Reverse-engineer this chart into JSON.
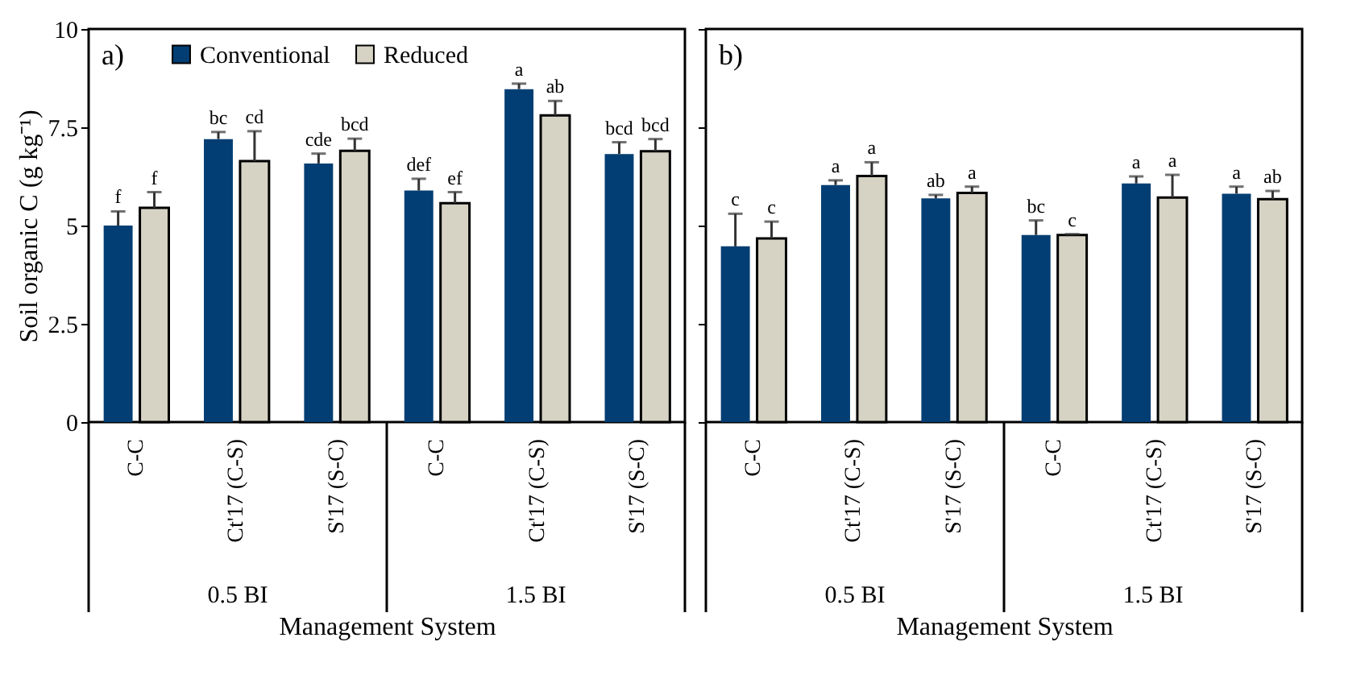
{
  "chart_data": [
    {
      "type": "bar",
      "title": "a)",
      "xlabel": "Management System",
      "ylabel": "Soil organic C (g kg⁻¹)",
      "categories": [
        "C-C",
        "Ct'17 (C-S)",
        "S'17 (S-C)",
        "C-C",
        "Ct'17 (C-S)",
        "S'17 (S-C)"
      ],
      "ylim": [
        0,
        10
      ],
      "yticks": [
        0,
        2.5,
        5,
        7.5,
        10
      ],
      "legend": "top left",
      "annotations": [
        "0.5 BI",
        "1.5 BI"
      ],
      "series": [
        {
          "name": "Conventional",
          "color": "#023e73",
          "values": [
            5.0,
            7.2,
            6.58,
            5.89,
            8.47,
            6.82
          ],
          "errors": [
            [
              5.0,
              5.36
            ],
            [
              7.2,
              7.38
            ],
            [
              6.58,
              6.83
            ],
            [
              5.89,
              6.19
            ],
            [
              8.47,
              8.61
            ],
            [
              6.82,
              7.12
            ]
          ],
          "value_labels": [
            "f",
            "bc",
            "cde",
            "def",
            "a",
            "bcd"
          ]
        },
        {
          "name": "Reduced",
          "color": "#d6d3c4",
          "values": [
            5.45,
            6.64,
            6.9,
            5.57,
            7.8,
            6.89
          ],
          "errors": [
            [
              5.45,
              5.85
            ],
            [
              6.64,
              7.4
            ],
            [
              6.9,
              7.21
            ],
            [
              5.57,
              5.85
            ],
            [
              7.8,
              8.17
            ],
            [
              6.89,
              7.2
            ]
          ],
          "value_labels": [
            "f",
            "cd",
            "bcd",
            "ef",
            "ab",
            "bcd"
          ]
        }
      ]
    },
    {
      "type": "bar",
      "title": "b)",
      "xlabel": "Management System",
      "categories": [
        "C-C",
        "Ct'17 (C-S)",
        "S'17 (S-C)",
        "C-C",
        "Ct'17 (C-S)",
        "S'17 (S-C)"
      ],
      "ylim": [
        0,
        10
      ],
      "yticks": [
        0,
        2.5,
        5,
        7.5,
        10
      ],
      "tick_labels": "x",
      "annotations": [
        "0.5 BI",
        "1.5 BI"
      ],
      "series": [
        {
          "color": "#023e73",
          "values": [
            4.47,
            6.03,
            5.69,
            4.76,
            6.07,
            5.81
          ],
          "errors": [
            [
              4.47,
              5.3
            ],
            [
              6.03,
              6.15
            ],
            [
              5.69,
              5.78
            ],
            [
              4.76,
              5.13
            ],
            [
              6.07,
              6.25
            ],
            [
              5.81,
              5.99
            ]
          ],
          "value_labels": [
            "c",
            "a",
            "ab",
            "bc",
            "a",
            "a"
          ]
        },
        {
          "color": "#d6d3c4",
          "values": [
            4.67,
            6.26,
            5.83,
            4.76,
            5.71,
            5.67
          ],
          "errors": [
            [
              4.67,
              5.1
            ],
            [
              6.26,
              6.61
            ],
            [
              5.83,
              5.99
            ],
            [
              4.76,
              4.78
            ],
            [
              5.71,
              6.29
            ],
            [
              5.67,
              5.88
            ]
          ],
          "value_labels": [
            "c",
            "a",
            "a",
            "c",
            "a",
            "ab"
          ]
        }
      ]
    }
  ]
}
